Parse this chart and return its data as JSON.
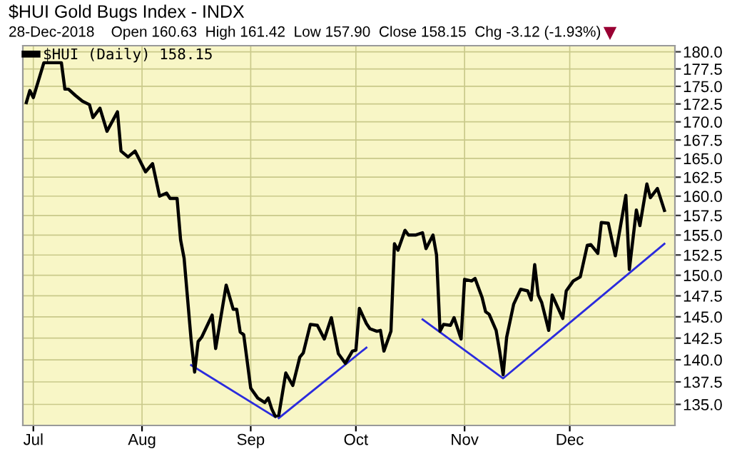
{
  "chart_data": {
    "type": "line",
    "title": "$HUI Gold Bugs Index - INDX",
    "subtitle": "28-Dec-2018    Open 160.63  High 161.42  Low 157.90  Close 158.15  Chg -3.12 (-1.93%)",
    "series": [
      {
        "name": "$HUI (Daily) 158.15",
        "color": "#000000",
        "x": [
          "2018-06-29",
          "2018-06-30",
          "2018-07-01",
          "2018-07-04",
          "2018-07-09",
          "2018-07-10",
          "2018-07-11",
          "2018-07-13",
          "2018-07-15",
          "2018-07-17",
          "2018-07-18",
          "2018-07-20",
          "2018-07-22",
          "2018-07-25",
          "2018-07-26",
          "2018-07-28",
          "2018-07-30",
          "2018-08-02",
          "2018-08-04",
          "2018-08-06",
          "2018-08-08",
          "2018-08-09",
          "2018-08-11",
          "2018-08-12",
          "2018-08-13",
          "2018-08-15",
          "2018-08-16",
          "2018-08-17",
          "2018-08-18",
          "2018-08-21",
          "2018-08-22",
          "2018-08-25",
          "2018-08-27",
          "2018-08-28",
          "2018-08-29",
          "2018-08-30",
          "2018-09-01",
          "2018-09-03",
          "2018-09-05",
          "2018-09-06",
          "2018-09-07",
          "2018-09-08",
          "2018-09-09",
          "2018-09-11",
          "2018-09-13",
          "2018-09-15",
          "2018-09-16",
          "2018-09-18",
          "2018-09-20",
          "2018-09-22",
          "2018-09-24",
          "2018-09-26",
          "2018-09-28",
          "2018-09-30",
          "2018-10-01",
          "2018-10-02",
          "2018-10-04",
          "2018-10-05",
          "2018-10-07",
          "2018-10-08",
          "2018-10-09",
          "2018-10-11",
          "2018-10-12",
          "2018-10-13",
          "2018-10-15",
          "2018-10-16",
          "2018-10-18",
          "2018-10-20",
          "2018-10-21",
          "2018-10-23",
          "2018-10-24",
          "2018-10-25",
          "2018-10-26",
          "2018-10-28",
          "2018-10-29",
          "2018-10-31",
          "2018-11-01",
          "2018-11-03",
          "2018-11-04",
          "2018-11-06",
          "2018-11-07",
          "2018-11-08",
          "2018-11-10",
          "2018-11-11",
          "2018-11-12",
          "2018-11-13",
          "2018-11-15",
          "2018-11-17",
          "2018-11-19",
          "2018-11-20",
          "2018-11-21",
          "2018-11-22",
          "2018-11-23",
          "2018-11-25",
          "2018-11-26",
          "2018-11-29",
          "2018-11-30",
          "2018-12-02",
          "2018-12-04",
          "2018-12-06",
          "2018-12-07",
          "2018-12-09",
          "2018-12-10",
          "2018-12-12",
          "2018-12-14",
          "2018-12-17",
          "2018-12-18",
          "2018-12-20",
          "2018-12-21",
          "2018-12-23",
          "2018-12-24",
          "2018-12-26",
          "2018-12-28"
        ],
        "values": [
          172.7,
          174.4,
          173.4,
          178.4,
          178.4,
          174.6,
          174.6,
          173.7,
          172.9,
          172.4,
          170.6,
          171.9,
          168.7,
          171.4,
          166.0,
          165.2,
          166.0,
          163.2,
          164.3,
          160.0,
          160.4,
          159.7,
          159.7,
          154.4,
          152.1,
          142.3,
          138.6,
          142.1,
          142.6,
          145.2,
          141.3,
          148.8,
          145.9,
          145.9,
          143.2,
          142.9,
          136.8,
          135.7,
          135.2,
          135.7,
          134.5,
          133.7,
          133.8,
          138.5,
          137.1,
          140.3,
          140.8,
          144.1,
          144.0,
          142.4,
          144.9,
          140.7,
          139.6,
          141.0,
          141.1,
          146.0,
          144.2,
          143.6,
          143.3,
          143.4,
          141.0,
          143.3,
          153.9,
          153.1,
          155.6,
          155.0,
          155.0,
          155.3,
          153.3,
          155.0,
          152.5,
          143.3,
          144.1,
          144.0,
          144.9,
          142.4,
          149.5,
          149.3,
          149.6,
          147.3,
          145.6,
          145.3,
          143.4,
          141.0,
          138.3,
          142.6,
          146.5,
          148.3,
          148.1,
          147.0,
          151.3,
          147.6,
          146.7,
          143.4,
          147.6,
          144.8,
          148.1,
          149.3,
          149.8,
          153.7,
          153.8,
          152.7,
          156.6,
          156.5,
          152.4,
          160.1,
          150.7,
          158.2,
          156.2,
          161.6,
          159.8,
          161.0,
          158.15
        ]
      },
      {
        "type": "line",
        "color": "#2b2bdd",
        "x": [
          "2018-08-15",
          "2018-09-08"
        ],
        "values": [
          139.4,
          133.6
        ]
      },
      {
        "type": "line",
        "color": "#2b2bdd",
        "x": [
          "2018-09-09",
          "2018-10-04"
        ],
        "values": [
          133.5,
          141.4
        ]
      },
      {
        "type": "line",
        "color": "#2b2bdd",
        "x": [
          "2018-10-20",
          "2018-11-12",
          "2018-12-28"
        ],
        "values": [
          144.7,
          137.9,
          153.9
        ]
      }
    ],
    "log": "y",
    "xlim": [
      "2018-06-28",
      "2018-12-31"
    ],
    "xticks": [
      {
        "value": "2018-07-01",
        "label": "Jul"
      },
      {
        "value": "2018-08-01",
        "label": "Aug"
      },
      {
        "value": "2018-09-01",
        "label": "Sep"
      },
      {
        "value": "2018-10-01",
        "label": "Oct"
      },
      {
        "value": "2018-11-01",
        "label": "Nov"
      },
      {
        "value": "2018-12-01",
        "label": "Dec"
      }
    ],
    "ylim": [
      132.7,
      180.9
    ],
    "yticks": [
      {
        "value": 135,
        "label": "135.0"
      },
      {
        "value": 137.5,
        "label": "137.5"
      },
      {
        "value": 140,
        "label": "140.0"
      },
      {
        "value": 142.5,
        "label": "142.5"
      },
      {
        "value": 145,
        "label": "145.0"
      },
      {
        "value": 147.5,
        "label": "147.5"
      },
      {
        "value": 150,
        "label": "150.0"
      },
      {
        "value": 152.5,
        "label": "152.5"
      },
      {
        "value": 155,
        "label": "155.0"
      },
      {
        "value": 157.5,
        "label": "157.5"
      },
      {
        "value": 160,
        "label": "160.0"
      },
      {
        "value": 162.5,
        "label": "162.5"
      },
      {
        "value": 165,
        "label": "165.0"
      },
      {
        "value": 167.5,
        "label": "167.5"
      },
      {
        "value": 170,
        "label": "170.0"
      },
      {
        "value": 172.5,
        "label": "172.5"
      },
      {
        "value": 175,
        "label": "175.0"
      },
      {
        "value": 177.5,
        "label": "177.5"
      },
      {
        "value": 180,
        "label": "180.0"
      }
    ],
    "grid": true,
    "legend": "top left",
    "marker": "none",
    "line_style": "solid"
  }
}
